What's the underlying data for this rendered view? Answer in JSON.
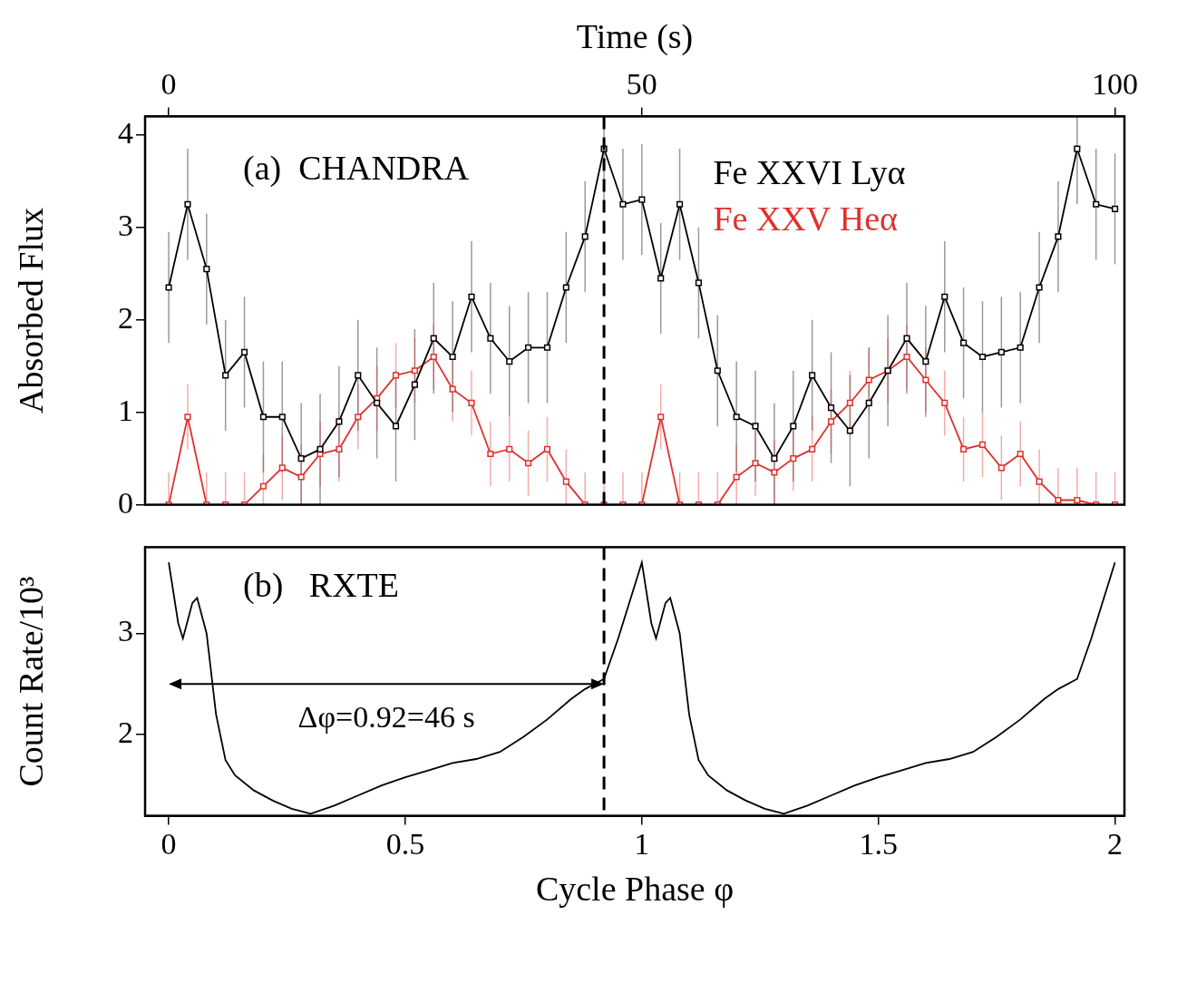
{
  "chart_data": [
    {
      "type": "line",
      "title": "(a)  CHANDRA",
      "ylabel": "Absorbed Flux",
      "x2label": "Time (s)",
      "x2lim": [
        -2.5,
        101
      ],
      "x2ticks": [
        0,
        50,
        100
      ],
      "xlim": [
        -0.05,
        2.02
      ],
      "ylim": [
        0,
        4.2
      ],
      "yticks": [
        0,
        1,
        2,
        3,
        4
      ],
      "grid": false,
      "legend": "top right",
      "vertical_line": 0.92,
      "x": [
        0,
        0.04,
        0.08,
        0.12,
        0.16,
        0.2,
        0.24,
        0.28,
        0.32,
        0.36,
        0.4,
        0.44,
        0.48,
        0.52,
        0.56,
        0.6,
        0.64,
        0.68,
        0.72,
        0.76,
        0.8,
        0.84,
        0.88,
        0.92,
        0.96,
        1.0,
        1.04,
        1.08,
        1.12,
        1.16,
        1.2,
        1.24,
        1.28,
        1.32,
        1.36,
        1.4,
        1.44,
        1.48,
        1.52,
        1.56,
        1.6,
        1.64,
        1.68,
        1.72,
        1.76,
        1.8,
        1.84,
        1.88,
        1.92,
        1.96,
        2.0
      ],
      "series": [
        {
          "name": "Fe XXVI Lyα",
          "color": "#000000",
          "marker": "square",
          "error": 0.6,
          "values": [
            2.35,
            3.25,
            2.55,
            1.4,
            1.65,
            0.95,
            0.95,
            0.5,
            0.6,
            0.9,
            1.4,
            1.1,
            0.85,
            1.3,
            1.8,
            1.6,
            2.25,
            1.8,
            1.55,
            1.7,
            1.7,
            2.35,
            2.9,
            3.85,
            3.25,
            3.3,
            2.45,
            3.25,
            2.4,
            1.45,
            0.95,
            0.85,
            0.5,
            0.85,
            1.4,
            1.05,
            0.8,
            1.1,
            1.45,
            1.8,
            1.55,
            2.25,
            1.75,
            1.6,
            1.65,
            1.7,
            2.35,
            2.9,
            3.85,
            3.25,
            3.2
          ]
        },
        {
          "name": "Fe XXV Heα",
          "color": "#e0302c",
          "marker": "square",
          "error": 0.35,
          "values": [
            0.0,
            0.95,
            0.0,
            0.0,
            0.0,
            0.2,
            0.4,
            0.3,
            0.55,
            0.6,
            0.95,
            1.15,
            1.4,
            1.45,
            1.6,
            1.25,
            1.1,
            0.55,
            0.6,
            0.45,
            0.6,
            0.25,
            0.0,
            0.0,
            0.0,
            0.0,
            0.95,
            0.0,
            0.0,
            0.0,
            0.3,
            0.45,
            0.35,
            0.5,
            0.6,
            0.9,
            1.1,
            1.35,
            1.45,
            1.6,
            1.35,
            1.1,
            0.6,
            0.65,
            0.4,
            0.55,
            0.25,
            0.05,
            0.05,
            0.0,
            0.0
          ]
        }
      ]
    },
    {
      "type": "line",
      "title": "(b)   RXTE",
      "xlabel": "Cycle Phase φ",
      "ylabel": "Count Rate/10³",
      "xlim": [
        -0.05,
        2.02
      ],
      "xticks": [
        0,
        0.5,
        1,
        1.5,
        2
      ],
      "ylim": [
        1.2,
        3.85
      ],
      "yticks": [
        2,
        3
      ],
      "grid": false,
      "color": "#000000",
      "phase_shift": {
        "from": 0,
        "to": 0.92,
        "y": 2.5,
        "label": "Δφ=0.92=46 s"
      },
      "x": [
        0,
        0.02,
        0.03,
        0.05,
        0.06,
        0.08,
        0.1,
        0.12,
        0.14,
        0.18,
        0.22,
        0.26,
        0.3,
        0.35,
        0.4,
        0.45,
        0.5,
        0.55,
        0.6,
        0.65,
        0.7,
        0.75,
        0.8,
        0.85,
        0.88,
        0.92,
        0.95,
        0.98,
        1.0,
        1.02,
        1.03,
        1.05,
        1.06,
        1.08,
        1.1,
        1.12,
        1.14,
        1.18,
        1.22,
        1.26,
        1.3,
        1.35,
        1.4,
        1.45,
        1.5,
        1.55,
        1.6,
        1.65,
        1.7,
        1.75,
        1.8,
        1.85,
        1.88,
        1.92,
        1.95,
        1.98,
        2.0
      ],
      "values": [
        3.7,
        3.1,
        2.95,
        3.3,
        3.35,
        3.0,
        2.2,
        1.75,
        1.6,
        1.45,
        1.35,
        1.27,
        1.22,
        1.3,
        1.4,
        1.5,
        1.58,
        1.65,
        1.72,
        1.76,
        1.83,
        1.98,
        2.15,
        2.35,
        2.45,
        2.55,
        2.95,
        3.4,
        3.7,
        3.1,
        2.95,
        3.3,
        3.35,
        3.0,
        2.2,
        1.75,
        1.6,
        1.45,
        1.35,
        1.27,
        1.22,
        1.3,
        1.4,
        1.5,
        1.58,
        1.65,
        1.72,
        1.76,
        1.83,
        1.98,
        2.15,
        2.35,
        2.45,
        2.55,
        2.95,
        3.4,
        3.7
      ]
    }
  ]
}
